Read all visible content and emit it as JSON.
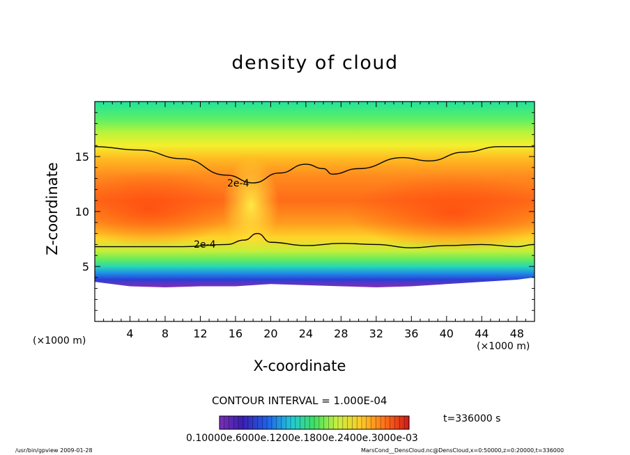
{
  "chart_data": {
    "type": "heatmap",
    "title": "density of cloud",
    "xlabel": "X-coordinate",
    "ylabel": "Z-coordinate",
    "x_unit_label": "(×1000 m)",
    "z_unit_label": "(×1000 m)",
    "xlim": [
      0,
      50
    ],
    "ylim": [
      0,
      20
    ],
    "x_ticks": [
      4,
      8,
      12,
      16,
      20,
      24,
      28,
      32,
      36,
      40,
      44,
      48
    ],
    "y_ticks": [
      5,
      10,
      15
    ],
    "contour_interval_text": "CONTOUR INTERVAL = 1.000E-04",
    "contour_labels": [
      "2e-4",
      "2e-4"
    ],
    "upper_contour_2e-4": {
      "x": [
        0,
        5,
        10,
        15,
        18,
        21,
        24,
        26,
        27,
        30,
        35,
        38,
        42,
        46,
        50
      ],
      "z": [
        15.9,
        15.6,
        14.8,
        13.3,
        12.6,
        13.5,
        14.3,
        13.9,
        13.4,
        13.9,
        14.9,
        14.6,
        15.4,
        15.9,
        15.9
      ]
    },
    "lower_contour_2e-4": {
      "x": [
        0,
        5,
        10,
        15,
        17,
        18.5,
        20,
        24,
        28,
        32,
        36,
        40,
        44,
        48,
        50
      ],
      "z": [
        6.8,
        6.8,
        6.8,
        7.0,
        7.4,
        8.0,
        7.2,
        6.9,
        7.1,
        7.0,
        6.7,
        6.9,
        7.0,
        6.8,
        7.0
      ]
    },
    "cloud_base_z": [
      [
        0,
        3.6
      ],
      [
        4,
        3.2
      ],
      [
        8,
        3.1
      ],
      [
        12,
        3.2
      ],
      [
        16,
        3.2
      ],
      [
        20,
        3.4
      ],
      [
        24,
        3.3
      ],
      [
        28,
        3.2
      ],
      [
        32,
        3.1
      ],
      [
        36,
        3.2
      ],
      [
        40,
        3.4
      ],
      [
        44,
        3.6
      ],
      [
        48,
        3.8
      ],
      [
        50,
        4.0
      ]
    ],
    "colorbar": {
      "labels_text": "0.10000e.6000e.1200e.1800e.2400e.3000e-03",
      "min": 0.0001,
      "max": 0.0003
    }
  },
  "time_text": "t=336000 s",
  "footer_left": "/usr/bin/gpview   2009-01-28",
  "footer_right": "MarsCond__DensCloud.nc@DensCloud,x=0:50000,z=0:20000,t=336000"
}
